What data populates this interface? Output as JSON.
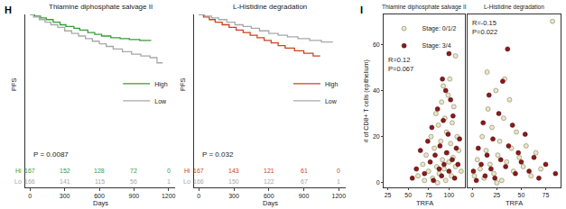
{
  "chart_data": [
    {
      "type": "line",
      "panel_label": "H",
      "title": "Thiamine diphosphate salvage II",
      "x_label": "Days",
      "y_label": "PFS",
      "line_style": "step",
      "xlim": [
        -40,
        1260
      ],
      "xticks": [
        0,
        300,
        600,
        900,
        1200
      ],
      "ylim": [
        0,
        1
      ],
      "tick_labels": "x",
      "legend": "right",
      "annotations": [
        "P = 0.0087"
      ],
      "series": [
        {
          "name": "High",
          "color": "#3a9a3a",
          "x": [
            0,
            40,
            90,
            140,
            200,
            260,
            310,
            380,
            430,
            500,
            560,
            620,
            700,
            780,
            860,
            950,
            1050
          ],
          "values": [
            1,
            0.99,
            0.98,
            0.97,
            0.955,
            0.94,
            0.93,
            0.92,
            0.91,
            0.895,
            0.885,
            0.875,
            0.865,
            0.86,
            0.855,
            0.85,
            0.85
          ]
        },
        {
          "name": "Low",
          "color": "#a8a8a8",
          "x": [
            0,
            30,
            80,
            130,
            180,
            240,
            300,
            360,
            420,
            480,
            540,
            600,
            660,
            720,
            800,
            880,
            960,
            1040,
            1100,
            1150
          ],
          "values": [
            1,
            0.985,
            0.97,
            0.955,
            0.94,
            0.925,
            0.905,
            0.89,
            0.875,
            0.86,
            0.845,
            0.83,
            0.815,
            0.8,
            0.785,
            0.77,
            0.76,
            0.75,
            0.72,
            0.72
          ]
        }
      ],
      "at_risk": {
        "x": [
          0,
          300,
          600,
          900,
          1200
        ],
        "rows": [
          {
            "name": "Hi",
            "color": "#3a9a3a",
            "values": [
              167,
              152,
              128,
              72,
              0
            ]
          },
          {
            "name": "Lo",
            "color": "#a8a8a8",
            "values": [
              166,
              141,
              115,
              56,
              1
            ]
          }
        ]
      }
    },
    {
      "type": "line",
      "title": "L-Histidine degradation",
      "x_label": "Days",
      "y_label": "PFS",
      "line_style": "step",
      "xlim": [
        -40,
        1260
      ],
      "xticks": [
        0,
        300,
        600,
        900,
        1200
      ],
      "ylim": [
        0,
        1
      ],
      "tick_labels": "x",
      "legend": "right",
      "annotations": [
        "P = 0.032"
      ],
      "series": [
        {
          "name": "High",
          "color": "#d04020",
          "x": [
            0,
            40,
            90,
            140,
            200,
            260,
            320,
            380,
            440,
            500,
            560,
            620,
            680,
            740,
            820,
            900,
            980,
            1040
          ],
          "values": [
            1,
            0.985,
            0.97,
            0.955,
            0.94,
            0.925,
            0.91,
            0.895,
            0.88,
            0.865,
            0.85,
            0.835,
            0.82,
            0.805,
            0.79,
            0.775,
            0.76,
            0.76
          ]
        },
        {
          "name": "Low",
          "color": "#a8a8a8",
          "x": [
            0,
            50,
            110,
            170,
            240,
            310,
            380,
            450,
            520,
            600,
            680,
            760,
            850,
            950,
            1050,
            1150
          ],
          "values": [
            1,
            0.99,
            0.98,
            0.97,
            0.955,
            0.94,
            0.93,
            0.92,
            0.905,
            0.89,
            0.88,
            0.87,
            0.86,
            0.85,
            0.84,
            0.84
          ]
        }
      ],
      "at_risk": {
        "x": [
          0,
          300,
          600,
          900,
          1200
        ],
        "rows": [
          {
            "name": "Hi",
            "color": "#d04020",
            "values": [
              167,
              143,
              121,
              61,
              0
            ]
          },
          {
            "name": "Lo",
            "color": "#a8a8a8",
            "values": [
              166,
              150,
              122,
              67,
              1
            ]
          }
        ]
      }
    },
    {
      "type": "scatter",
      "panel_label": "I",
      "y_label": "# of CD8+ T cells (epithelium)",
      "ylim": [
        -2,
        73
      ],
      "yticks": [
        0,
        20,
        40,
        60
      ],
      "legend": "upper left",
      "marker": "circle",
      "series": [
        {
          "name": "Stage: 0/1/2",
          "color": "#ece6c2"
        },
        {
          "name": "Stage: 3/4",
          "color": "#8b1a1a"
        }
      ],
      "panels": [
        {
          "title": "Thiamine diphosphate salvage II",
          "x_label": "TRFA",
          "xlim": [
            20,
            120
          ],
          "xticks": [
            25,
            50,
            75,
            100
          ],
          "annotations": [
            "R=0.12",
            "P=0.067"
          ],
          "data": [
            {
              "x": [
                62,
                68,
                72,
                75,
                78,
                80,
                82,
                84,
                85,
                87,
                88,
                90,
                91,
                92,
                93,
                94,
                95,
                96,
                97,
                98,
                99,
                100,
                101,
                102,
                103,
                104,
                105,
                106,
                108,
                110,
                112,
                115,
                70,
                86,
                108
              ],
              "values": [
                3,
                8,
                12,
                5,
                20,
                2,
                15,
                30,
                7,
                25,
                4,
                18,
                35,
                10,
                42,
                6,
                28,
                1,
                22,
                13,
                38,
                9,
                45,
                17,
                3,
                26,
                11,
                33,
                7,
                20,
                14,
                5,
                1,
                0,
                55
              ]
            },
            {
              "x": [
                55,
                60,
                65,
                70,
                74,
                77,
                79,
                81,
                83,
                86,
                88,
                89,
                91,
                93,
                94,
                96,
                97,
                99,
                100,
                102,
                104,
                105,
                107,
                109,
                111,
                113,
                100,
                92
              ],
              "values": [
                2,
                6,
                14,
                4,
                18,
                9,
                24,
                1,
                12,
                32,
                6,
                16,
                3,
                27,
                8,
                40,
                13,
                21,
                5,
                36,
                10,
                29,
                2,
                15,
                8,
                19,
                56,
                45
              ]
            }
          ]
        },
        {
          "title": "L-Histidine degradation",
          "x_label": "TRFA",
          "xlim": [
            -5,
            90
          ],
          "xticks": [
            0,
            25,
            50,
            75
          ],
          "tick_labels": "x",
          "annotations": [
            "R=-0.15",
            "P=0.022"
          ],
          "data": [
            {
              "x": [
                2,
                5,
                8,
                10,
                12,
                14,
                16,
                18,
                20,
                22,
                24,
                26,
                28,
                30,
                32,
                35,
                38,
                40,
                42,
                45,
                48,
                52,
                55,
                60,
                65,
                70,
                82,
                15,
                25,
                33
              ],
              "values": [
                3,
                10,
                6,
                20,
                2,
                14,
                32,
                8,
                24,
                4,
                40,
                12,
                18,
                1,
                28,
                9,
                36,
                15,
                5,
                22,
                11,
                7,
                16,
                3,
                13,
                6,
                70,
                48,
                0,
                45
              ]
            },
            {
              "x": [
                1,
                4,
                6,
                9,
                11,
                13,
                15,
                17,
                19,
                21,
                23,
                27,
                29,
                31,
                34,
                37,
                41,
                44,
                47,
                50,
                54,
                58,
                63,
                68,
                75,
                85,
                36
              ],
              "values": [
                5,
                1,
                15,
                8,
                26,
                3,
                12,
                38,
                6,
                19,
                2,
                30,
                10,
                44,
                7,
                16,
                25,
                4,
                13,
                9,
                21,
                5,
                11,
                2,
                8,
                4,
                58
              ]
            }
          ]
        }
      ]
    }
  ]
}
